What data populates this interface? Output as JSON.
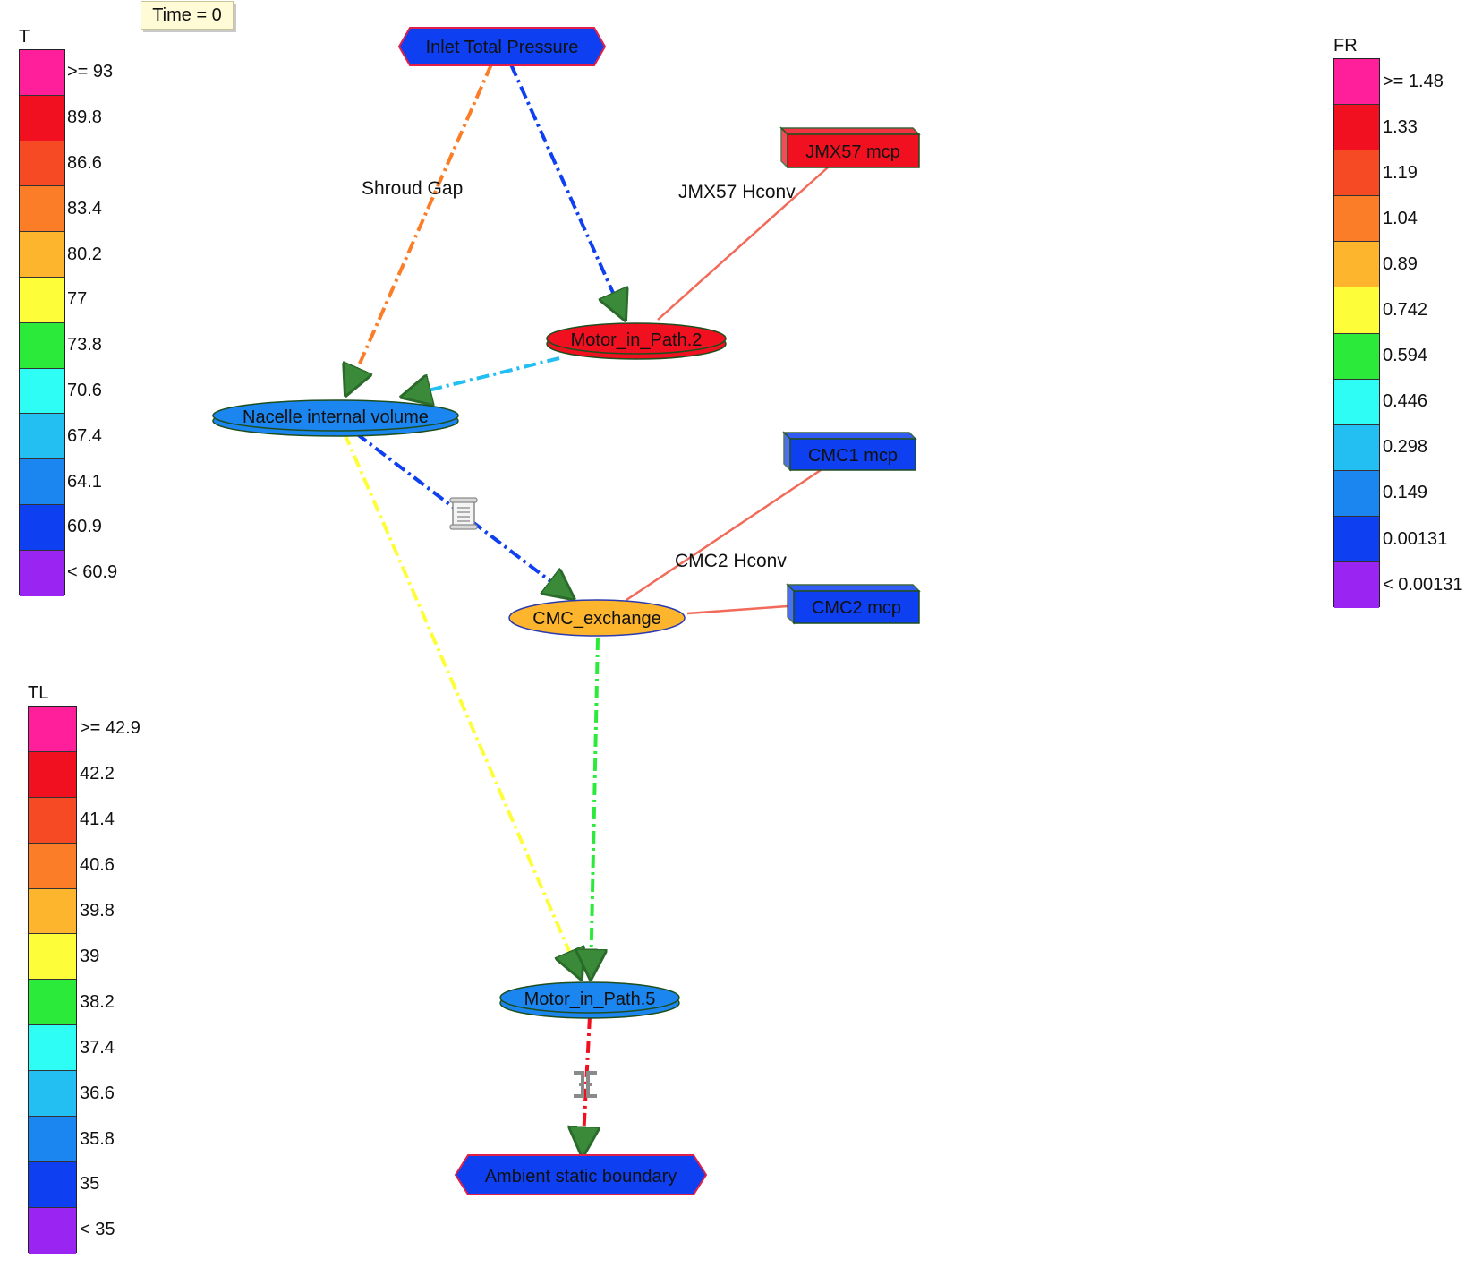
{
  "time_label": "Time = 0",
  "legends": {
    "T": {
      "title": "T",
      "labels": [
        ">= 93",
        "89.8",
        "86.6",
        "83.4",
        "80.2",
        "77",
        "73.8",
        "70.6",
        "67.4",
        "64.1",
        "60.9",
        "< 60.9"
      ]
    },
    "TL": {
      "title": "TL",
      "labels": [
        ">= 42.9",
        "42.2",
        "41.4",
        "40.6",
        "39.8",
        "39",
        "38.2",
        "37.4",
        "36.6",
        "35.8",
        "35",
        "< 35"
      ]
    },
    "FR": {
      "title": "FR",
      "labels": [
        ">= 1.48",
        "1.33",
        "1.19",
        "1.04",
        "0.89",
        "0.742",
        "0.594",
        "0.446",
        "0.298",
        "0.149",
        "0.00131",
        "< 0.00131"
      ]
    }
  },
  "scale_colors": [
    "#ff1f9a",
    "#f01020",
    "#f54a24",
    "#fb7d27",
    "#fcb52c",
    "#fdfd3a",
    "#2cea3a",
    "#2dfdf5",
    "#23bef2",
    "#1b86f0",
    "#0e3ff0",
    "#9a25f3"
  ],
  "nodes": {
    "inlet": {
      "label": "Inlet Total Pressure",
      "fill": "#0e3ff0"
    },
    "ambient": {
      "label": "Ambient static boundary",
      "fill": "#0e3ff0"
    },
    "motor2": {
      "label": "Motor_in_Path.2",
      "fill": "#f01020"
    },
    "nacelle": {
      "label": "Nacelle internal volume",
      "fill": "#1b86f0"
    },
    "cmc_exchange": {
      "label": "CMC_exchange",
      "fill": "#fcb52c"
    },
    "motor5": {
      "label": "Motor_in_Path.5",
      "fill": "#1b86f0"
    },
    "jmx57": {
      "label": "JMX57 mcp",
      "fill": "#f01020"
    },
    "cmc1": {
      "label": "CMC1 mcp",
      "fill": "#0e3ff0"
    },
    "cmc2": {
      "label": "CMC2 mcp",
      "fill": "#0e3ff0"
    }
  },
  "edge_labels": {
    "shroud_gap": "Shroud Gap",
    "jmx57_hconv": "JMX57 Hconv",
    "cmc2_hconv": "CMC2 Hconv"
  },
  "edge_colors": {
    "shroud_gap": "#fb7d27",
    "inlet_to_motor2": "#0e3ff0",
    "motor2_to_nacelle": "#23bef2",
    "nacelle_to_cmc": "#0e3ff0",
    "nacelle_to_motor5": "#fdfd3a",
    "cmc_to_motor5": "#2cea3a",
    "motor5_to_ambient": "#f01020",
    "conductor": "#f26a5a"
  }
}
